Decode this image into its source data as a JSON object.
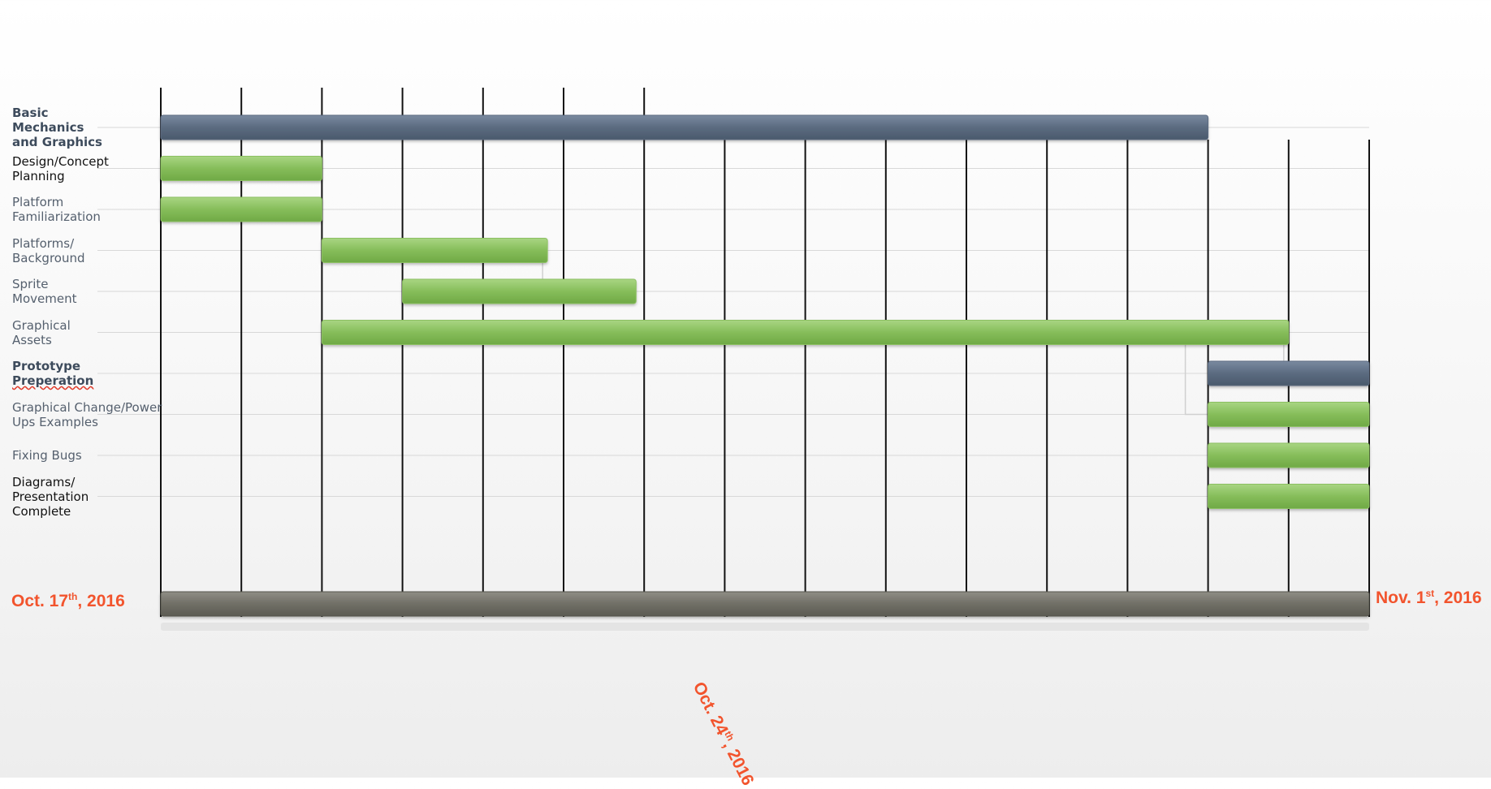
{
  "chart_data": {
    "type": "gantt",
    "tasks": [
      {
        "label": "Basic\nMechanics\nand Graphics",
        "start": "2016-10-17",
        "end": "2016-10-30",
        "color": "#5b6b80",
        "style": "bold"
      },
      {
        "label": "Design/Concept\nPlanning",
        "start": "2016-10-17",
        "end": "2016-10-19",
        "color": "#8cc062",
        "style": "dark"
      },
      {
        "label": "Platform\nFamiliarization",
        "start": "2016-10-17",
        "end": "2016-10-19",
        "color": "#8cc062",
        "style": "normal"
      },
      {
        "label": "Platforms/\nBackground",
        "start": "2016-10-19",
        "end": "2016-10-21.8",
        "color": "#8cc062",
        "style": "normal"
      },
      {
        "label": "Sprite\nMovement",
        "start": "2016-10-20",
        "end": "2016-10-22.9",
        "color": "#8cc062",
        "style": "normal"
      },
      {
        "label": "Graphical\nAssets",
        "start": "2016-10-19",
        "end": "2016-10-31",
        "color": "#8cc062",
        "style": "normal"
      },
      {
        "label": "Prototype\nPreperation",
        "start": "2016-10-30",
        "end": "2016-11-01",
        "color": "#5b6b80",
        "style": "bold-squiggle"
      },
      {
        "label": "Graphical Change/Power\nUps Examples",
        "start": "2016-10-30",
        "end": "2016-11-01",
        "color": "#8cc062",
        "style": "normal"
      },
      {
        "label": "Fixing Bugs",
        "start": "2016-10-30",
        "end": "2016-11-01",
        "color": "#8cc062",
        "style": "normal"
      },
      {
        "label": "Diagrams/\nPresentation\nComplete",
        "start": "2016-10-30",
        "end": "2016-11-01",
        "color": "#8cc062",
        "style": "dark"
      }
    ],
    "x_range": [
      "2016-10-17",
      "2016-11-01"
    ],
    "gridlines": [
      "2016-10-17",
      "2016-10-18",
      "2016-10-19",
      "2016-10-20",
      "2016-10-21",
      "2016-10-22",
      "2016-10-23",
      "2016-10-24",
      "2016-10-25",
      "2016-10-26",
      "2016-10-27",
      "2016-10-28",
      "2016-10-29",
      "2016-10-30",
      "2016-10-31",
      "2016-11-01"
    ],
    "timeline_color": "#706f66",
    "date_labels": {
      "start": {
        "text": "Oct. 17",
        "sup": "th",
        "suffix": ", 2016"
      },
      "mid": {
        "text": "Oct. 24",
        "sup": "th",
        "suffix": ", 2016"
      },
      "end": {
        "text": "Nov. 1",
        "sup": "st",
        "suffix": ", 2016"
      }
    },
    "date_color": "#f2542d"
  }
}
